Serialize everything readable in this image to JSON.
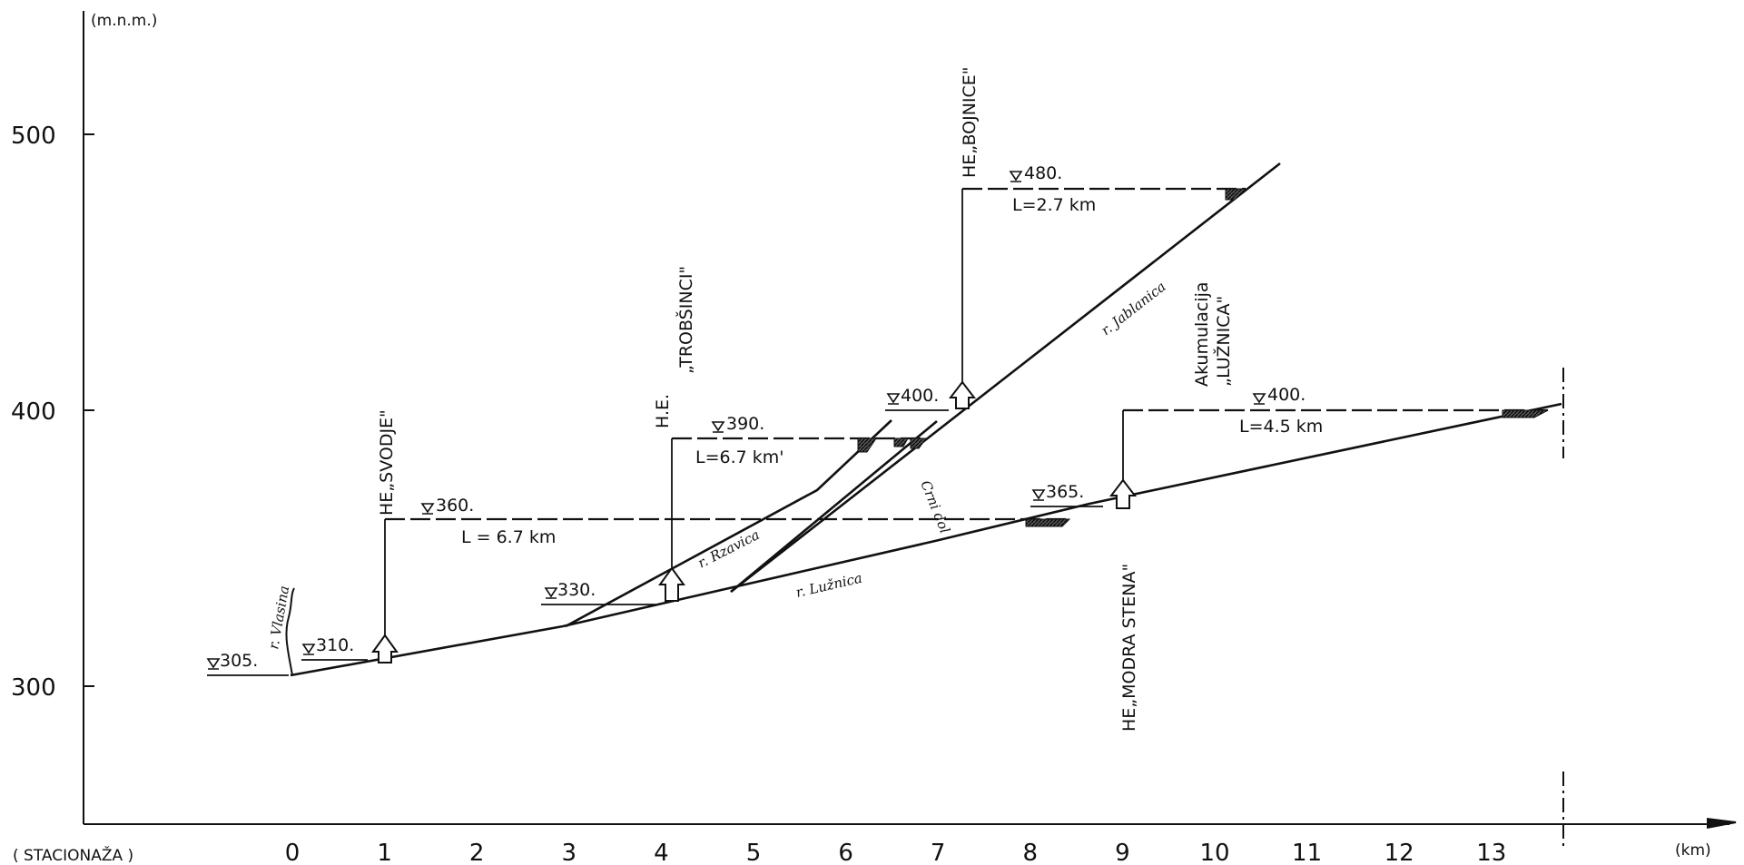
{
  "axes": {
    "y_unit": "(m.n.m.)",
    "x_unit": "(km)",
    "x_prefix": "( STACIONAŽA )",
    "y_ticks": [
      "500",
      "400",
      "300"
    ],
    "x_ticks": [
      "0",
      "1",
      "2",
      "3",
      "4",
      "5",
      "6",
      "7",
      "8",
      "9",
      "10",
      "11",
      "12",
      "13"
    ]
  },
  "plants": [
    {
      "id": "svodje",
      "label": "HE„SVODJE\"",
      "km": 1.0,
      "weir_elev": 310,
      "level_label": "360.",
      "level": 360,
      "length_label": "L = 6.7 km"
    },
    {
      "id": "trobsinci",
      "label_a": "H.E.",
      "label_b": "„TROBŠINCI\"",
      "km": 4.1,
      "weir_elev": 330,
      "level_label": "390.",
      "level": 390,
      "length_label": "L=6.7 km'"
    },
    {
      "id": "bojnice",
      "label": "HE„BOJNICE\"",
      "km": 7.25,
      "weir_elev": 400,
      "level_label": "480.",
      "level": 480,
      "length_label": "L=2.7 km"
    },
    {
      "id": "modra-stena",
      "label": "HE„MODRA STENA\"",
      "km": 9.0,
      "weir_elev": 365,
      "level_label": "400.",
      "level": 400,
      "length_label": "L=4.5 km",
      "reservoir_a": "Akumulacija",
      "reservoir_b": "„LUŽNICA\""
    }
  ],
  "small_levels": [
    {
      "id": "l305",
      "text": "305."
    },
    {
      "id": "l310",
      "text": "310."
    },
    {
      "id": "l330",
      "text": "330."
    },
    {
      "id": "l400",
      "text": "400."
    },
    {
      "id": "l365",
      "text": "365."
    }
  ],
  "rivers": {
    "vlasina": "r. Vlasina",
    "luznica": "r. Lužnica",
    "jablanica": "r. Jablanica",
    "rzavica": "r. Rzavica",
    "crni": "Crni dol"
  },
  "colors": {
    "ink": "#111111",
    "hatch": "#333333"
  }
}
